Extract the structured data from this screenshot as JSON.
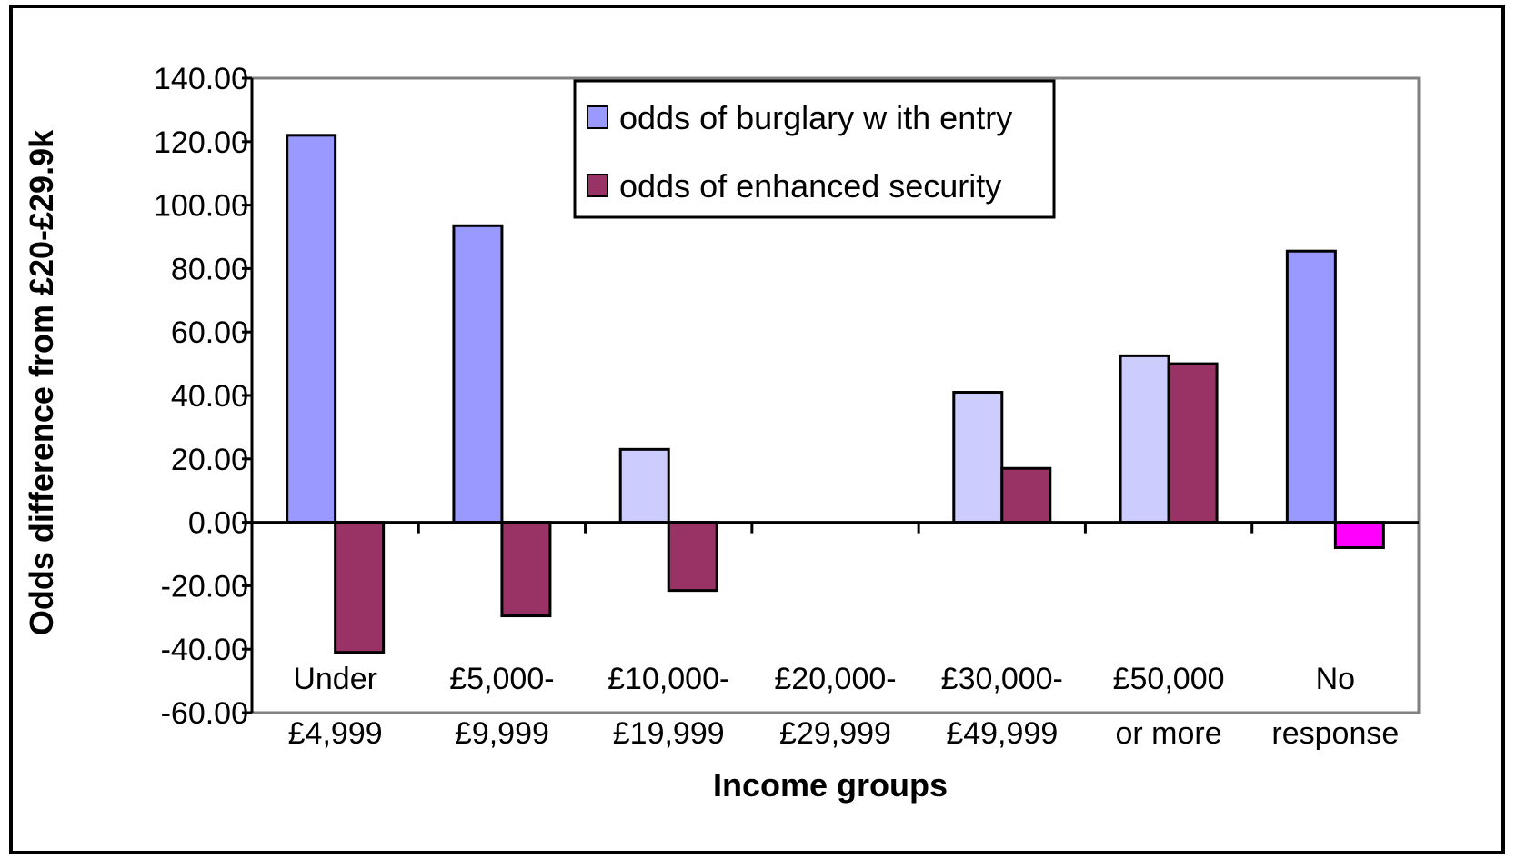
{
  "chart_data": {
    "type": "bar",
    "title": "",
    "xlabel": "Income groups",
    "ylabel": "Odds difference from £20-£29.9k",
    "ylim": [
      -60,
      140
    ],
    "ytick_step": 20,
    "ytick_labels": [
      "-60.00",
      "-40.00",
      "-20.00",
      "0.00",
      "20.00",
      "40.00",
      "60.00",
      "80.00",
      "100.00",
      "120.00",
      "140.00"
    ],
    "categories": [
      [
        "Under",
        "£4,999"
      ],
      [
        "£5,000-",
        "£9,999"
      ],
      [
        "£10,000-",
        "£19,999"
      ],
      [
        "£20,000-",
        "£29,999"
      ],
      [
        "£30,000-",
        "£49,999"
      ],
      [
        "£50,000",
        "or more"
      ],
      [
        "No",
        "response"
      ]
    ],
    "series": [
      {
        "name": "odds of burglary w ith entry",
        "color": "#9999ff",
        "values": [
          122,
          93.5,
          23,
          0,
          41,
          52.5,
          85.5
        ],
        "point_colors": [
          "#9999ff",
          "#9999ff",
          "#ccccff",
          "#ccccff",
          "#ccccff",
          "#ccccff",
          "#9999ff"
        ]
      },
      {
        "name": "odds of enhanced security",
        "color": "#993366",
        "values": [
          -41,
          -29.5,
          -21.5,
          0,
          17,
          50,
          -8
        ],
        "point_colors": [
          "#993366",
          "#993366",
          "#993366",
          "#993366",
          "#993366",
          "#993366",
          "#ff00ff"
        ]
      }
    ],
    "legend_position": "top-center",
    "grid": false
  }
}
